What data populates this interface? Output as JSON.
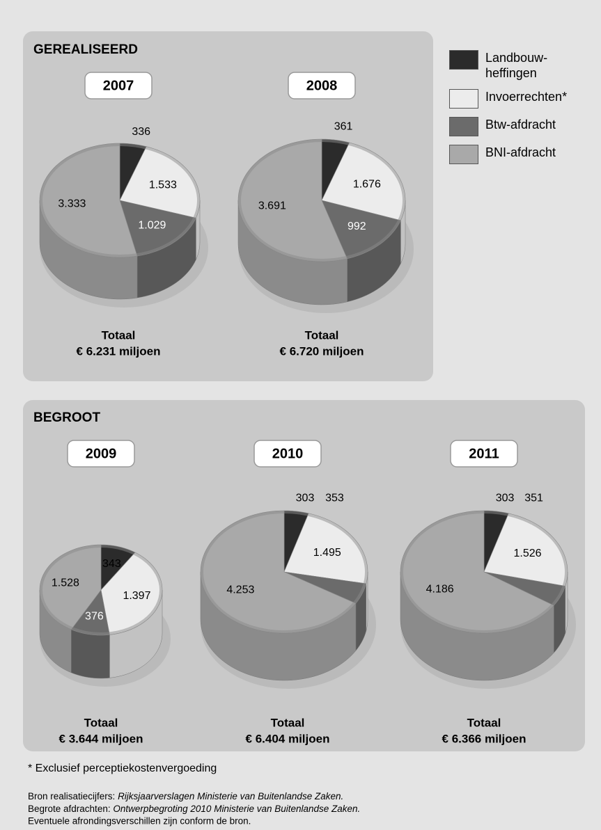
{
  "sections": [
    {
      "title": "GEREALISEERD"
    },
    {
      "title": "BEGROOT"
    }
  ],
  "legend": {
    "items": [
      {
        "label": "Landbouw-heffingen",
        "color": "#2b2b2b"
      },
      {
        "label": "Invoerrechten*",
        "color": "#ececec"
      },
      {
        "label": "Btw-afdracht",
        "color": "#6b6b6b"
      },
      {
        "label": "BNI-afdracht",
        "color": "#a9a9a9"
      }
    ]
  },
  "chart_data": [
    {
      "type": "pie",
      "title": "2007",
      "values": [
        336,
        1533,
        1029,
        3333
      ],
      "value_labels": [
        "336",
        "1.533",
        "1.029",
        "3.333"
      ],
      "total_label": "Totaal",
      "total": "€ 6.231 miljoen"
    },
    {
      "type": "pie",
      "title": "2008",
      "values": [
        361,
        1676,
        992,
        3691
      ],
      "value_labels": [
        "361",
        "1.676",
        "992",
        "3.691"
      ],
      "total_label": "Totaal",
      "total": "€ 6.720 miljoen"
    },
    {
      "type": "pie",
      "title": "2009",
      "values": [
        343,
        1397,
        376,
        1528
      ],
      "value_labels": [
        "343",
        "1.397",
        "376",
        "1.528"
      ],
      "total_label": "Totaal",
      "total": "€ 3.644 miljoen"
    },
    {
      "type": "pie",
      "title": "2010",
      "values": [
        303,
        1495,
        353,
        4253
      ],
      "value_labels": [
        "303",
        "1.495",
        "353",
        "4.253"
      ],
      "total_label": "Totaal",
      "total": "€ 6.404 miljoen"
    },
    {
      "type": "pie",
      "title": "2011",
      "values": [
        303,
        1526,
        351,
        4186
      ],
      "value_labels": [
        "303",
        "1.526",
        "351",
        "4.186"
      ],
      "total_label": "Totaal",
      "total": "€ 6.366 miljoen"
    }
  ],
  "footnote": "* Exclusief perceptiekostenvergoeding",
  "source": [
    {
      "text": "Bron realisatiecijfers: ",
      "emphasis": "Rijksjaarverslagen Ministerie van Buitenlandse Zaken."
    },
    {
      "text": "Begrote afdrachten: ",
      "emphasis": "Ontwerpbegroting 2010 Ministerie van Buitenlandse Zaken."
    },
    {
      "text": "Eventuele afrondingsverschillen zijn conform de bron."
    }
  ]
}
